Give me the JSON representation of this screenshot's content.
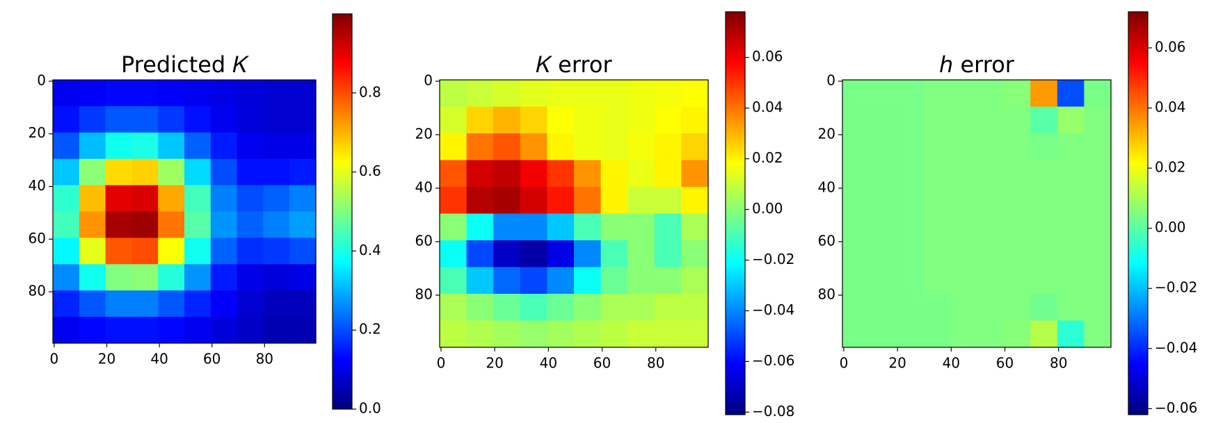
{
  "chart_data": [
    {
      "type": "heatmap",
      "title": "Predicted 𝐾",
      "colormap": "jet",
      "x": [
        4.5,
        14.5,
        24.5,
        34.5,
        44.5,
        54.5,
        64.5,
        74.5,
        84.5,
        94.5
      ],
      "y": [
        4.5,
        14.5,
        24.5,
        34.5,
        44.5,
        54.5,
        64.5,
        74.5,
        84.5,
        94.5
      ],
      "z": [
        [
          0.11,
          0.12,
          0.13,
          0.13,
          0.12,
          0.11,
          0.1,
          0.09,
          0.08,
          0.08
        ],
        [
          0.14,
          0.18,
          0.21,
          0.21,
          0.18,
          0.14,
          0.11,
          0.09,
          0.08,
          0.08
        ],
        [
          0.21,
          0.31,
          0.39,
          0.4,
          0.32,
          0.22,
          0.15,
          0.11,
          0.1,
          0.1
        ],
        [
          0.32,
          0.51,
          0.66,
          0.67,
          0.53,
          0.34,
          0.2,
          0.14,
          0.14,
          0.15
        ],
        [
          0.42,
          0.69,
          0.9,
          0.91,
          0.71,
          0.44,
          0.25,
          0.2,
          0.22,
          0.25
        ],
        [
          0.44,
          0.73,
          0.96,
          0.97,
          0.76,
          0.46,
          0.27,
          0.22,
          0.25,
          0.28
        ],
        [
          0.37,
          0.6,
          0.79,
          0.8,
          0.62,
          0.39,
          0.22,
          0.17,
          0.18,
          0.2
        ],
        [
          0.26,
          0.39,
          0.5,
          0.51,
          0.41,
          0.27,
          0.15,
          0.1,
          0.09,
          0.1
        ],
        [
          0.16,
          0.21,
          0.25,
          0.25,
          0.21,
          0.16,
          0.12,
          0.08,
          0.06,
          0.06
        ],
        [
          0.11,
          0.13,
          0.14,
          0.14,
          0.13,
          0.11,
          0.09,
          0.07,
          0.05,
          0.05
        ]
      ],
      "xlim": [
        -0.5,
        99.5
      ],
      "ylim": [
        99.5,
        -0.5
      ],
      "xticks": [
        0,
        20,
        40,
        60,
        80
      ],
      "yticks": [
        0,
        20,
        40,
        60,
        80
      ],
      "clim": [
        0,
        1.0
      ],
      "cticks": [
        {
          "value": 0,
          "label": "0.0"
        },
        {
          "value": 0.2,
          "label": "0.2"
        },
        {
          "value": 0.4,
          "label": "0.4"
        },
        {
          "value": 0.6,
          "label": "0.6"
        },
        {
          "value": 0.8,
          "label": "0.8"
        }
      ]
    },
    {
      "type": "heatmap",
      "title": "𝐾 error",
      "colormap": "jet",
      "x": [
        4.5,
        14.5,
        24.5,
        34.5,
        44.5,
        54.5,
        64.5,
        74.5,
        84.5,
        94.5
      ],
      "y": [
        4.5,
        14.5,
        24.5,
        34.5,
        44.5,
        54.5,
        64.5,
        74.5,
        84.5,
        94.5
      ],
      "z": [
        [
          0.008,
          0.01,
          0.012,
          0.014,
          0.015,
          0.015,
          0.015,
          0.016,
          0.017,
          0.018
        ],
        [
          0.012,
          0.025,
          0.03,
          0.025,
          0.018,
          0.016,
          0.015,
          0.016,
          0.018,
          0.02
        ],
        [
          0.02,
          0.04,
          0.045,
          0.035,
          0.02,
          0.016,
          0.015,
          0.017,
          0.02,
          0.025
        ],
        [
          0.045,
          0.065,
          0.068,
          0.06,
          0.05,
          0.035,
          0.02,
          0.015,
          0.02,
          0.035
        ],
        [
          0.05,
          0.07,
          0.072,
          0.065,
          0.055,
          0.04,
          0.02,
          0.01,
          0.01,
          0.02
        ],
        [
          0.0,
          -0.02,
          -0.04,
          -0.04,
          -0.03,
          -0.01,
          0.0,
          0.0,
          -0.01,
          0.005
        ],
        [
          -0.02,
          -0.05,
          -0.07,
          -0.075,
          -0.065,
          -0.04,
          -0.01,
          0.0,
          -0.01,
          0.0
        ],
        [
          -0.01,
          -0.03,
          -0.045,
          -0.05,
          -0.04,
          -0.02,
          -0.005,
          0.0,
          0.0,
          0.005
        ],
        [
          0.005,
          0.0,
          -0.005,
          -0.01,
          -0.005,
          0.0,
          0.005,
          0.005,
          0.008,
          0.008
        ],
        [
          0.008,
          0.006,
          0.004,
          0.002,
          0.004,
          0.006,
          0.008,
          0.01,
          0.01,
          0.01
        ]
      ],
      "xlim": [
        -0.5,
        99.5
      ],
      "ylim": [
        99.5,
        -0.5
      ],
      "xticks": [
        0,
        20,
        40,
        60,
        80
      ],
      "yticks": [
        0,
        20,
        40,
        60,
        80
      ],
      "clim": [
        -0.081,
        0.078
      ],
      "cticks": [
        {
          "value": -0.08,
          "label": "−0.08"
        },
        {
          "value": -0.06,
          "label": "−0.06"
        },
        {
          "value": -0.04,
          "label": "−0.04"
        },
        {
          "value": -0.02,
          "label": "−0.02"
        },
        {
          "value": 0,
          "label": "0.00"
        },
        {
          "value": 0.02,
          "label": "0.02"
        },
        {
          "value": 0.04,
          "label": "0.04"
        },
        {
          "value": 0.06,
          "label": "0.06"
        }
      ]
    },
    {
      "type": "heatmap",
      "title": "ℎ error",
      "colormap": "jet",
      "x": [
        4.5,
        14.5,
        24.5,
        34.5,
        44.5,
        54.5,
        64.5,
        74.5,
        84.5,
        94.5
      ],
      "y": [
        4.5,
        14.5,
        24.5,
        34.5,
        44.5,
        54.5,
        64.5,
        74.5,
        84.5,
        94.5
      ],
      "z": [
        [
          0.004,
          0.004,
          0.004,
          0.005,
          0.005,
          0.005,
          0.006,
          0.035,
          -0.035,
          0.004
        ],
        [
          0.004,
          0.004,
          0.004,
          0.005,
          0.005,
          0.005,
          0.005,
          0.0,
          0.008,
          0.005
        ],
        [
          0.004,
          0.004,
          0.004,
          0.005,
          0.005,
          0.005,
          0.005,
          0.004,
          0.005,
          0.005
        ],
        [
          0.004,
          0.004,
          0.004,
          0.005,
          0.005,
          0.005,
          0.005,
          0.005,
          0.005,
          0.005
        ],
        [
          0.004,
          0.004,
          0.004,
          0.005,
          0.005,
          0.005,
          0.005,
          0.005,
          0.005,
          0.005
        ],
        [
          0.004,
          0.004,
          0.004,
          0.005,
          0.005,
          0.005,
          0.005,
          0.005,
          0.005,
          0.005
        ],
        [
          0.004,
          0.004,
          0.004,
          0.005,
          0.005,
          0.005,
          0.005,
          0.005,
          0.005,
          0.005
        ],
        [
          0.004,
          0.004,
          0.004,
          0.005,
          0.005,
          0.005,
          0.005,
          0.005,
          0.005,
          0.005
        ],
        [
          0.004,
          0.004,
          0.004,
          0.004,
          0.005,
          0.005,
          0.005,
          0.003,
          0.005,
          0.005
        ],
        [
          0.004,
          0.004,
          0.004,
          0.004,
          0.005,
          0.005,
          0.006,
          0.012,
          -0.006,
          0.005
        ]
      ],
      "xlim": [
        -0.5,
        99.5
      ],
      "ylim": [
        99.5,
        -0.5
      ],
      "xticks": [
        0,
        20,
        40,
        60,
        80
      ],
      "yticks": [
        0,
        20,
        40,
        60,
        80
      ],
      "clim": [
        -0.062,
        0.072
      ],
      "cticks": [
        {
          "value": -0.06,
          "label": "−0.06"
        },
        {
          "value": -0.04,
          "label": "−0.04"
        },
        {
          "value": -0.02,
          "label": "−0.02"
        },
        {
          "value": 0,
          "label": "0.00"
        },
        {
          "value": 0.02,
          "label": "0.02"
        },
        {
          "value": 0.04,
          "label": "0.04"
        },
        {
          "value": 0.06,
          "label": "0.06"
        }
      ]
    }
  ]
}
